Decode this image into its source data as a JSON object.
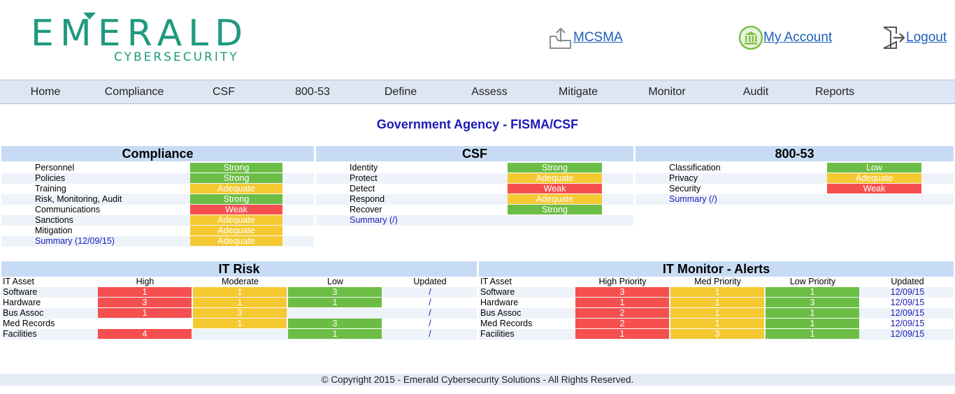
{
  "brand": {
    "word": "EMERALD",
    "sub": "CYBERSECURITY",
    "color": "#1f9a7f"
  },
  "header_links": {
    "mcsma": "MCSMA",
    "account": "My Account",
    "logout": "Logout"
  },
  "nav": [
    "Home",
    "Compliance",
    "CSF",
    "800-53",
    "Define",
    "Assess",
    "Mitigate",
    "Monitor",
    "Audit",
    "Reports"
  ],
  "page_title": "Government Agency - FISMA/CSF",
  "compliance": {
    "title": "Compliance",
    "rows": [
      {
        "label": "Personnel",
        "status": "Strong",
        "level": "g"
      },
      {
        "label": "Policies",
        "status": "Strong",
        "level": "g"
      },
      {
        "label": "Training",
        "status": "Adequate",
        "level": "y"
      },
      {
        "label": "Risk, Monitoring, Audit",
        "status": "Strong",
        "level": "g"
      },
      {
        "label": "Communications",
        "status": "Weak",
        "level": "r"
      },
      {
        "label": "Sanctions",
        "status": "Adequate",
        "level": "y"
      },
      {
        "label": "Mitigation",
        "status": "Adequate",
        "level": "y"
      },
      {
        "label": "Summary (12/09/15)",
        "status": "Adequate",
        "level": "y",
        "link": true
      }
    ]
  },
  "csf": {
    "title": "CSF",
    "rows": [
      {
        "label": "Identity",
        "status": "Strong",
        "level": "g"
      },
      {
        "label": "Protect",
        "status": "Adequate",
        "level": "y"
      },
      {
        "label": "Detect",
        "status": "Weak",
        "level": "r"
      },
      {
        "label": "Respond",
        "status": "Adequate",
        "level": "y"
      },
      {
        "label": "Recover",
        "status": "Strong",
        "level": "g"
      },
      {
        "label": "Summary (/)",
        "status": "",
        "level": "",
        "link": true
      }
    ]
  },
  "nist": {
    "title": "800-53",
    "rows": [
      {
        "label": "Classification",
        "status": "Low",
        "level": "g"
      },
      {
        "label": "Privacy",
        "status": "Adequate",
        "level": "y"
      },
      {
        "label": "Security",
        "status": "Weak",
        "level": "r"
      },
      {
        "label": "Summary (/)",
        "status": "",
        "level": "",
        "link": true
      }
    ]
  },
  "it_risk": {
    "title": "IT Risk",
    "headers": [
      "IT Asset",
      "High",
      "Moderate",
      "Low",
      "Updated"
    ],
    "rows": [
      {
        "asset": "Software",
        "high": "1",
        "moderate": "1",
        "low": "3",
        "updated": "/"
      },
      {
        "asset": "Hardware",
        "high": "3",
        "moderate": "1",
        "low": "1",
        "updated": "/"
      },
      {
        "asset": "Bus Assoc",
        "high": "1",
        "moderate": "3",
        "low": "",
        "updated": "/"
      },
      {
        "asset": "Med Records",
        "high": "",
        "moderate": "1",
        "low": "3",
        "updated": "/"
      },
      {
        "asset": "Facilities",
        "high": "4",
        "moderate": "",
        "low": "1",
        "updated": "/"
      }
    ]
  },
  "it_monitor": {
    "title": "IT Monitor - Alerts",
    "headers": [
      "IT Asset",
      "High Priority",
      "Med Priority",
      "Low Priority",
      "Updated"
    ],
    "rows": [
      {
        "asset": "Software",
        "high": "3",
        "med": "1",
        "low": "1",
        "updated": "12/09/15"
      },
      {
        "asset": "Hardware",
        "high": "1",
        "med": "1",
        "low": "3",
        "updated": "12/09/15"
      },
      {
        "asset": "Bus Assoc",
        "high": "2",
        "med": "1",
        "low": "1",
        "updated": "12/09/15"
      },
      {
        "asset": "Med Records",
        "high": "2",
        "med": "1",
        "low": "1",
        "updated": "12/09/15"
      },
      {
        "asset": "Facilities",
        "high": "1",
        "med": "3",
        "low": "1",
        "updated": "12/09/15"
      }
    ]
  },
  "footer": "© Copyright  2015 - Emerald Cybersecurity Solutions - All Rights Reserved.",
  "colors": {
    "strong": "#6cbd45",
    "adequate": "#f5c932",
    "weak": "#f5504f",
    "link": "#1a1ab8",
    "nav_bg": "#dde6f2",
    "panel_head": "#c8dbf5"
  }
}
